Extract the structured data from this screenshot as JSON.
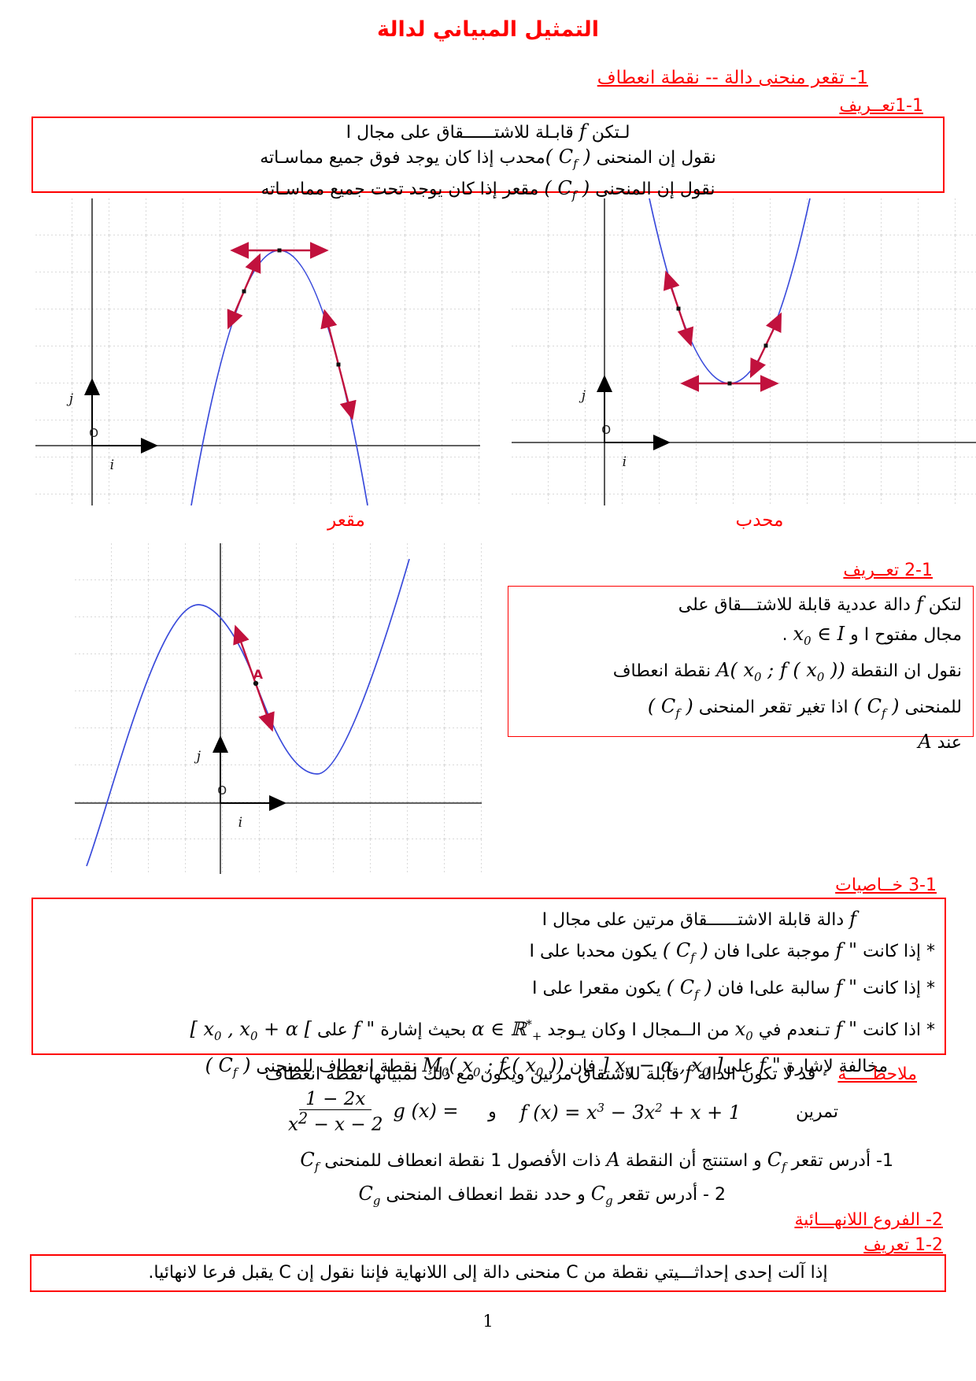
{
  "page": {
    "title": "التمثيل المبياني لدالة",
    "number": "1"
  },
  "headings": {
    "h1": "1- تقعر منحنى دالة --  نقطة انعطاف",
    "h1b": "1-1تعــريف",
    "h2": "2-1 تعــريف",
    "h3": "3-1 خــاصيات",
    "h4": "2- الفروع اللانهـــائية",
    "h4b": "1-2 تعريف",
    "note_label": "ملاحظـــــة",
    "exercise_label": "تمرين"
  },
  "definition1": {
    "lines": [
      [
        {
          "t": "لـتكن  "
        },
        {
          "m": "f"
        },
        {
          "t": "  قابـلة للاشتــــــقاق على مجال I"
        }
      ],
      [
        {
          "t": "نقول إن المنحنى  "
        },
        {
          "m": "( C_{f} )"
        },
        {
          "t": "محدب إذا كان يوجد فوق جميع مماسـاته"
        }
      ],
      [
        {
          "t": "نقول إن المنحنى "
        },
        {
          "m": "( C_{f} )"
        },
        {
          "t": " مقعر إذا كان يوجد تحت  جميع مماسـاته"
        }
      ]
    ]
  },
  "graphs": {
    "labels": {
      "concave": "مقعر",
      "convex": "محدب",
      "origin": "O",
      "unit_i": "i",
      "unit_j": "j",
      "point_A": "A"
    },
    "colors": {
      "curve": "#3a4bdb",
      "tangent": "#c1113d",
      "grid": "#d9d9d9"
    }
  },
  "definition2": {
    "lines": [
      [
        {
          "t": "لتكن "
        },
        {
          "m": "f"
        },
        {
          "t": " دالة عددية قابلة للاشتـــقاق على"
        }
      ],
      [
        {
          "t": "مجال مفتوح  I  و  "
        },
        {
          "m": "x_{0} ∈ I"
        },
        {
          "t": " ."
        }
      ],
      [
        {
          "t": "نقول ان النقطة   "
        },
        {
          "m": "A( x_{0} ; f ( x_{0} ))"
        },
        {
          "t": "   نقطة انعطاف"
        }
      ],
      [
        {
          "t": "للمنحنى "
        },
        {
          "m": "( C_{f} )"
        },
        {
          "t": " اذا تغير تقعر المنحنى "
        },
        {
          "m": "( C_{f} )"
        }
      ],
      [
        {
          "t": "عند "
        },
        {
          "m": "A"
        }
      ]
    ]
  },
  "properties": {
    "lines": [
      [
        {
          "m": "f"
        },
        {
          "t": " دالة قابلة الاشتــــــقاق مرتين على مجال I"
        }
      ],
      [
        {
          "t": "*   إذا كانت "
        },
        {
          "m": "f \""
        },
        {
          "t": " موجبة علىI فان "
        },
        {
          "m": "( C_{f} )"
        },
        {
          "t": " يكون محدبا على I"
        }
      ],
      [
        {
          "t": "*   إذا كانت "
        },
        {
          "m": "f \""
        },
        {
          "t": " سالبة علىI  فان  "
        },
        {
          "m": "( C_{f} )"
        },
        {
          "t": " يكون مقعرا  على I"
        }
      ],
      [
        {
          "t": "*   اذا كانت "
        },
        {
          "m": "f \""
        },
        {
          "t": " تـنعدم في "
        },
        {
          "m": "x_{0}"
        },
        {
          "t": " من الــمجال I وكان يـوجد   "
        },
        {
          "m": "α ∈ ℝ^{*}_{+}"
        },
        {
          "t": "   بحيث إشارة "
        },
        {
          "m": "f \""
        },
        {
          "t": " على  "
        },
        {
          "m": "[ x_{0} , x_{0} + α ["
        }
      ],
      [
        {
          "t": "مخالفة  لإشارة "
        },
        {
          "m": "f \""
        },
        {
          "t": " على"
        },
        {
          "m": "] x_{0} − α , x_{0} ]"
        },
        {
          "t": "  فان  "
        },
        {
          "m": "M_{0}( x_{0} ; f ( x_{0} ))"
        },
        {
          "t": "  نقطة  انعطاف  للمنحنى "
        },
        {
          "m": "( C_{f} )"
        }
      ]
    ]
  },
  "note_text": [
    {
      "t": "قد لا تكون الدالة "
    },
    {
      "m": "f"
    },
    {
      "t": " قابلة للاشتقاق مرتين ويكون مع ذلك لمبيانها نقطة انعطاف"
    }
  ],
  "exercise": {
    "f_formula": [
      {
        "m": "f (x) = x^{3} − 3x^{2} + x + 1"
      }
    ],
    "conjunction": "و",
    "g_formula": [
      {
        "m": "g (x) = "
      },
      {
        "frac": [
          "1 − 2x",
          "x^{2} − x − 2"
        ]
      }
    ],
    "items": [
      [
        {
          "t": "1-  أدرس تقعر "
        },
        {
          "m": "C_{f}"
        },
        {
          "t": " و استنتج أن النقطة  "
        },
        {
          "m": "A"
        },
        {
          "t": "  ذات الأفصول 1 نقطة انعطاف للمنحنى  "
        },
        {
          "m": "C_{f}"
        }
      ],
      [
        {
          "t": "2 -  أدرس تقعر  "
        },
        {
          "m": "C_{g}"
        },
        {
          "t": " و حدد نقط انعطاف المنحنى  "
        },
        {
          "m": "C_{g}"
        }
      ]
    ]
  },
  "definition3": {
    "text": "إذا آلت إحدى إحداثـــيتي نقطة من C منحنى دالة إلى اللانهاية فإننا نقول إن C يقبل فرعا لانهائيا."
  }
}
